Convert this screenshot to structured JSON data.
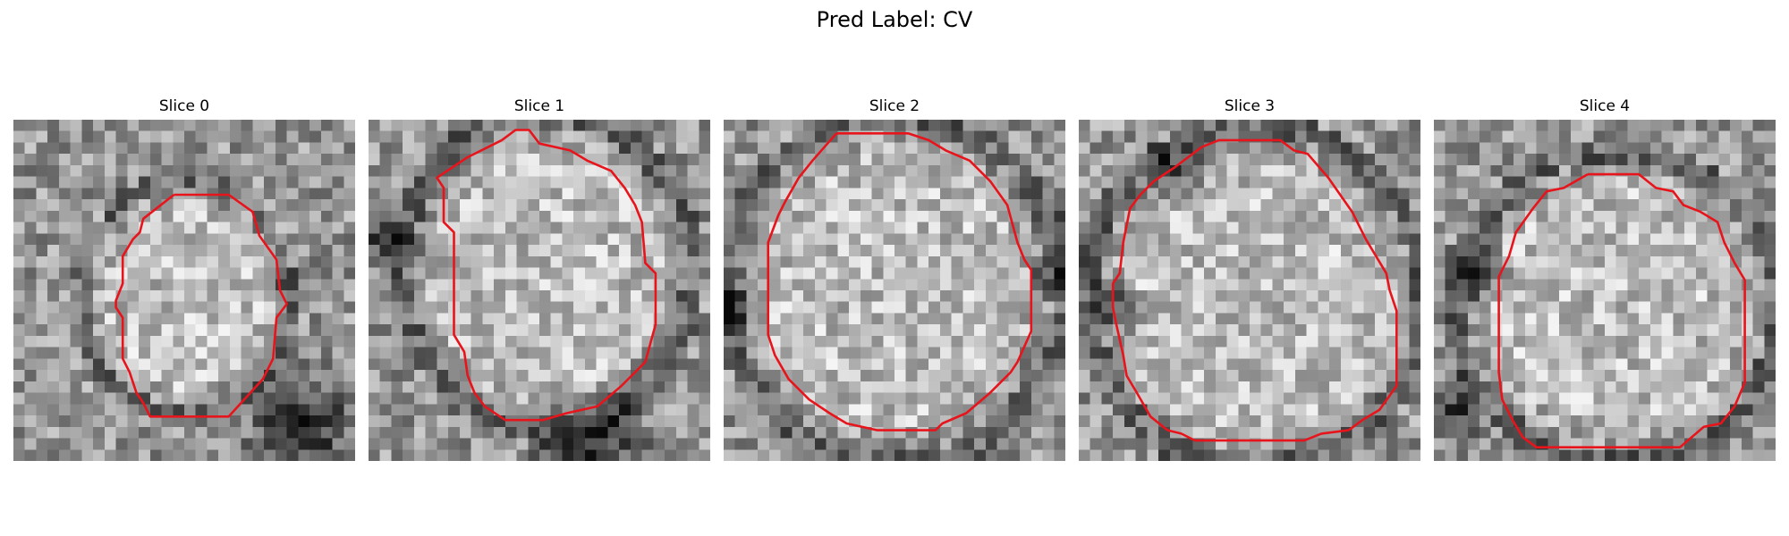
{
  "figure": {
    "suptitle": "Pred Label: CV"
  },
  "colors": {
    "contour": "#e8141c",
    "background": "#ffffff"
  },
  "slices": [
    {
      "title": "Slice 0"
    },
    {
      "title": "Slice 1"
    },
    {
      "title": "Slice 2"
    },
    {
      "title": "Slice 3"
    },
    {
      "title": "Slice 4"
    }
  ]
}
